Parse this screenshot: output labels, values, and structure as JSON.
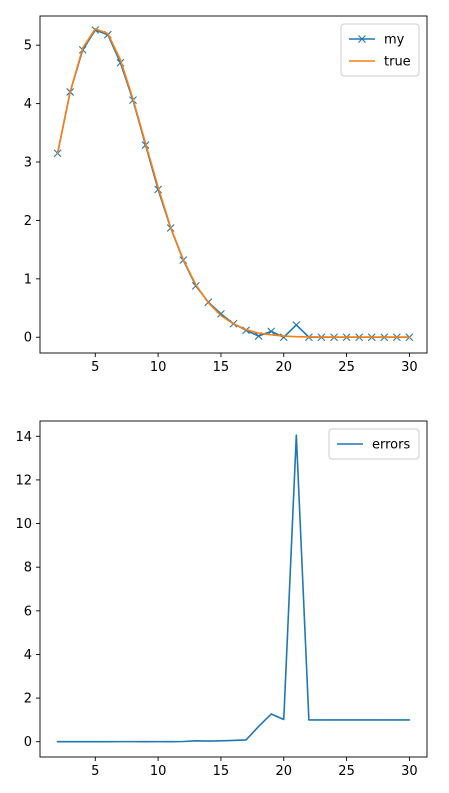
{
  "chart_data": [
    {
      "type": "line",
      "xlim": [
        0.6,
        31.4
      ],
      "ylim": [
        -0.27,
        5.5
      ],
      "xticks": [
        5,
        10,
        15,
        20,
        25,
        30
      ],
      "yticks": [
        0,
        1,
        2,
        3,
        4,
        5
      ],
      "grid": false,
      "legend_position": "top-right",
      "x": [
        2,
        3,
        4,
        5,
        6,
        7,
        8,
        9,
        10,
        11,
        12,
        13,
        14,
        15,
        16,
        17,
        18,
        19,
        20,
        21,
        22,
        23,
        24,
        25,
        26,
        27,
        28,
        29,
        30
      ],
      "series": [
        {
          "name": "my",
          "color": "#1f77b4",
          "marker": "x",
          "values": [
            3.15,
            4.2,
            4.92,
            5.26,
            5.18,
            4.7,
            4.06,
            3.29,
            2.53,
            1.87,
            1.32,
            0.88,
            0.6,
            0.4,
            0.23,
            0.12,
            0.02,
            0.1,
            0.0,
            0.21,
            0.0,
            0.0,
            0.0,
            0.0,
            0.0,
            0.0,
            0.0,
            0.0,
            0.0
          ]
        },
        {
          "name": "true",
          "color": "#ff7f0e",
          "marker": "",
          "values": [
            3.15,
            4.2,
            4.95,
            5.28,
            5.2,
            4.75,
            4.08,
            3.32,
            2.57,
            1.88,
            1.33,
            0.9,
            0.59,
            0.37,
            0.23,
            0.13,
            0.07,
            0.04,
            0.02,
            0.01,
            0.005,
            0.002,
            0.001,
            0.0,
            0.0,
            0.0,
            0.0,
            0.0,
            0.0
          ]
        }
      ]
    },
    {
      "type": "line",
      "xlim": [
        0.6,
        31.4
      ],
      "ylim": [
        -0.7,
        14.7
      ],
      "xticks": [
        5,
        10,
        15,
        20,
        25,
        30
      ],
      "yticks": [
        0,
        2,
        4,
        6,
        8,
        10,
        12,
        14
      ],
      "grid": false,
      "legend_position": "top-right",
      "x": [
        2,
        3,
        4,
        5,
        6,
        7,
        8,
        9,
        10,
        11,
        12,
        13,
        14,
        15,
        16,
        17,
        18,
        19,
        20,
        21,
        22,
        23,
        24,
        25,
        26,
        27,
        28,
        29,
        30
      ],
      "series": [
        {
          "name": "errors",
          "color": "#1f77b4",
          "marker": "",
          "values": [
            0.0,
            0.0,
            0.0,
            0.0,
            0.0,
            0.005,
            0.005,
            0.0,
            0.005,
            0.0,
            0.01,
            0.04,
            0.03,
            0.04,
            0.06,
            0.08,
            0.7,
            1.27,
            1.02,
            14.05,
            1.0,
            1.0,
            1.0,
            1.0,
            1.0,
            1.0,
            1.0,
            1.0,
            1.0
          ]
        }
      ]
    }
  ]
}
